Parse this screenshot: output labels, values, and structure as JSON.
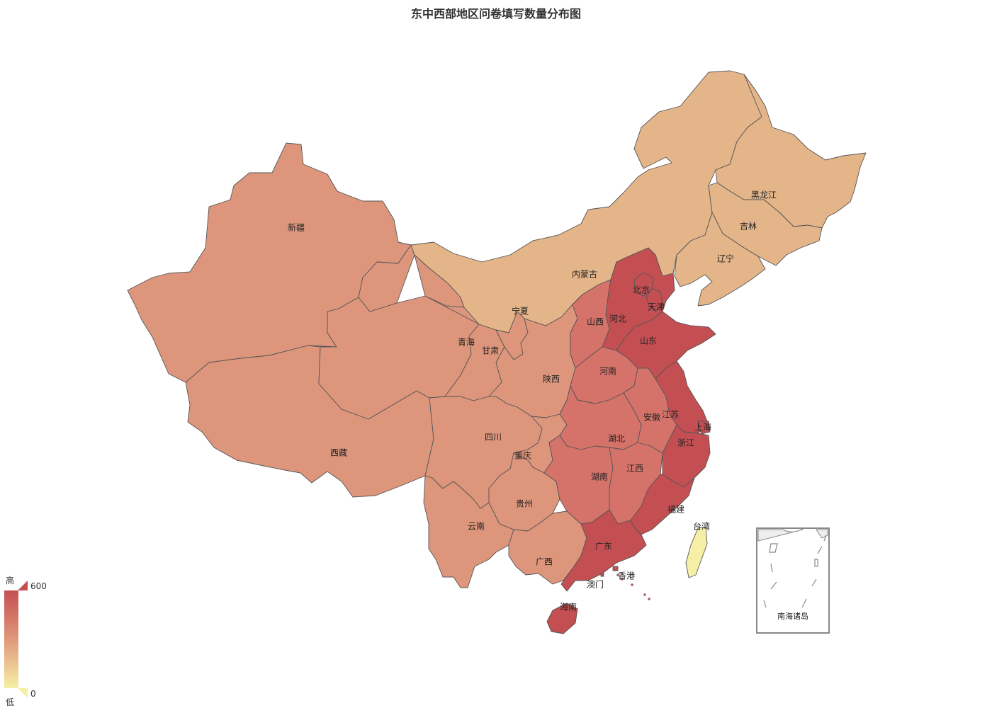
{
  "title": "东中西部地区问卷填写数量分布图",
  "visual_map": {
    "max_label": "600",
    "min_label": "0",
    "high_text": "高",
    "low_text": "低",
    "color_high": "#c44f53",
    "color_mid": "#e0987a",
    "color_low": "#f6efa6"
  },
  "provinces": [
    {
      "key": "xinjiang",
      "name": "新疆",
      "value": 300,
      "color": "#dd967c"
    },
    {
      "key": "xizang",
      "name": "西藏",
      "value": 300,
      "color": "#dd967c"
    },
    {
      "key": "qinghai",
      "name": "青海",
      "value": 300,
      "color": "#dd967c"
    },
    {
      "key": "gansu",
      "name": "甘肃",
      "value": 300,
      "color": "#dd967c"
    },
    {
      "key": "neimenggu",
      "name": "内蒙古",
      "value": 180,
      "color": "#e4b589"
    },
    {
      "key": "heilongjiang",
      "name": "黑龙江",
      "value": 180,
      "color": "#e4b589"
    },
    {
      "key": "jilin",
      "name": "吉林",
      "value": 180,
      "color": "#e4b589"
    },
    {
      "key": "liaoning",
      "name": "辽宁",
      "value": 180,
      "color": "#e4b589"
    },
    {
      "key": "ningxia",
      "name": "宁夏",
      "value": 300,
      "color": "#dd967c"
    },
    {
      "key": "shaanxi",
      "name": "陕西",
      "value": 300,
      "color": "#dd967c"
    },
    {
      "key": "sichuan",
      "name": "四川",
      "value": 300,
      "color": "#dd967c"
    },
    {
      "key": "chongqing",
      "name": "重庆",
      "value": 300,
      "color": "#dd967c"
    },
    {
      "key": "guizhou",
      "name": "贵州",
      "value": 300,
      "color": "#dd967c"
    },
    {
      "key": "yunnan",
      "name": "云南",
      "value": 300,
      "color": "#dd967c"
    },
    {
      "key": "guangxi",
      "name": "广西",
      "value": 300,
      "color": "#dd967c"
    },
    {
      "key": "shanxi",
      "name": "山西",
      "value": 400,
      "color": "#d5736a"
    },
    {
      "key": "henan",
      "name": "河南",
      "value": 400,
      "color": "#d5736a"
    },
    {
      "key": "hubei",
      "name": "湖北",
      "value": 400,
      "color": "#d5736a"
    },
    {
      "key": "hunan",
      "name": "湖南",
      "value": 400,
      "color": "#d5736a"
    },
    {
      "key": "jiangxi",
      "name": "江西",
      "value": 400,
      "color": "#d5736a"
    },
    {
      "key": "anhui",
      "name": "安徽",
      "value": 400,
      "color": "#d5736a"
    },
    {
      "key": "hebei",
      "name": "河北",
      "value": 600,
      "color": "#c44f53"
    },
    {
      "key": "beijing",
      "name": "北京",
      "value": 600,
      "color": "#c44f53"
    },
    {
      "key": "tianjin",
      "name": "天津",
      "value": 600,
      "color": "#c44f53"
    },
    {
      "key": "shandong",
      "name": "山东",
      "value": 600,
      "color": "#c44f53"
    },
    {
      "key": "jiangsu",
      "name": "江苏",
      "value": 600,
      "color": "#c44f53"
    },
    {
      "key": "shanghai",
      "name": "上海",
      "value": 600,
      "color": "#c44f53"
    },
    {
      "key": "zhejiang",
      "name": "浙江",
      "value": 600,
      "color": "#c44f53"
    },
    {
      "key": "fujian",
      "name": "福建",
      "value": 600,
      "color": "#c44f53"
    },
    {
      "key": "guangdong",
      "name": "广东",
      "value": 600,
      "color": "#c44f53"
    },
    {
      "key": "hainan",
      "name": "海南",
      "value": 600,
      "color": "#c44f53"
    },
    {
      "key": "taiwan",
      "name": "台湾",
      "value": 0,
      "color": "#f6efa6"
    },
    {
      "key": "xianggang",
      "name": "香港",
      "value": null,
      "color": ""
    },
    {
      "key": "aomen",
      "name": "澳门",
      "value": null,
      "color": ""
    }
  ],
  "inset": {
    "label": "南海诸岛"
  }
}
